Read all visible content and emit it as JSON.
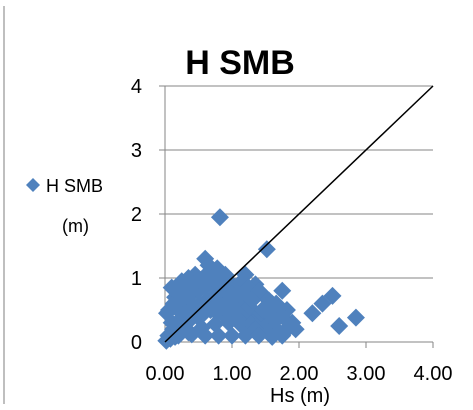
{
  "chart_data": {
    "type": "scatter",
    "title": "H SMB",
    "xlabel": "Hs (m)",
    "ylabel": "",
    "xlim": [
      0,
      4
    ],
    "ylim": [
      0,
      4
    ],
    "x_ticks": [
      "0.00",
      "1.00",
      "2.00",
      "3.00",
      "4.00"
    ],
    "y_ticks": [
      "0",
      "1",
      "2",
      "3",
      "4"
    ],
    "grid": "horizontal",
    "legend": {
      "placement": "left",
      "entries": [
        "H SMB",
        "(m)"
      ]
    },
    "colors": {
      "series": "#4F81BD",
      "reference_line": "#000000",
      "grid": "#868686"
    },
    "reference_line": {
      "x": [
        0,
        4
      ],
      "y": [
        0,
        4
      ]
    },
    "series": [
      {
        "name": "H SMB (m)",
        "x": [
          0.82,
          1.52,
          0.6,
          0.65,
          0.78,
          0.9,
          2.5,
          2.35,
          2.2,
          2.6,
          2.85,
          1.75,
          1.82,
          1.9,
          1.2,
          1.35,
          1.45,
          1.6,
          1.05,
          0.25,
          0.35,
          0.45,
          0.15,
          0.55,
          0.7,
          0.95,
          1.1,
          1.25,
          1.4,
          1.55,
          1.7,
          0.05,
          0.1,
          0.2,
          0.3,
          0.4,
          0.5,
          0.6,
          0.75,
          0.85,
          1.0,
          1.15,
          1.3,
          1.5,
          1.65,
          1.8,
          0.12,
          0.22,
          0.32,
          0.42,
          0.52,
          0.62,
          0.72,
          0.82,
          0.92,
          1.02,
          1.12,
          1.22,
          1.32,
          1.42,
          1.62,
          0.08,
          0.18,
          0.28,
          0.38,
          0.48,
          0.58,
          0.68,
          0.78,
          0.88,
          0.98,
          1.08,
          1.18,
          1.28,
          1.38,
          1.48,
          1.58,
          1.68,
          1.78,
          0.02,
          0.15,
          0.35,
          0.55,
          0.75,
          0.95,
          1.15,
          1.35,
          1.55,
          1.75,
          1.95,
          0.03,
          0.13,
          0.23,
          0.43,
          0.63,
          0.83,
          1.03,
          1.23,
          1.43,
          1.63,
          0.06,
          0.26,
          0.46,
          0.66,
          0.86,
          1.06,
          1.26,
          1.46,
          1.66,
          1.86,
          0.1,
          0.3,
          0.5,
          0.7,
          0.9,
          1.1,
          1.3,
          1.5,
          0.2,
          0.4,
          0.6,
          0.8,
          1.0,
          1.2,
          1.4,
          1.6
        ],
        "y": [
          1.95,
          1.45,
          1.3,
          1.2,
          1.15,
          1.05,
          0.72,
          0.6,
          0.45,
          0.25,
          0.38,
          0.8,
          0.5,
          0.3,
          1.05,
          0.9,
          0.75,
          0.6,
          0.85,
          0.95,
          1.0,
          1.05,
          0.7,
          0.95,
          1.0,
          0.95,
          0.9,
          0.85,
          0.8,
          0.65,
          0.55,
          0.1,
          0.3,
          0.5,
          0.65,
          0.75,
          0.8,
          0.85,
          0.9,
          0.8,
          0.75,
          0.7,
          0.65,
          0.55,
          0.45,
          0.35,
          0.2,
          0.35,
          0.45,
          0.55,
          0.6,
          0.65,
          0.7,
          0.62,
          0.58,
          0.55,
          0.5,
          0.45,
          0.4,
          0.35,
          0.3,
          0.05,
          0.15,
          0.25,
          0.35,
          0.4,
          0.45,
          0.5,
          0.45,
          0.42,
          0.4,
          0.35,
          0.3,
          0.28,
          0.25,
          0.22,
          0.2,
          0.18,
          0.15,
          0.02,
          0.08,
          0.15,
          0.22,
          0.28,
          0.3,
          0.25,
          0.2,
          0.15,
          0.1,
          0.2,
          0.45,
          0.6,
          0.8,
          0.9,
          0.95,
          0.7,
          0.6,
          0.5,
          0.45,
          0.4,
          0.5,
          0.7,
          0.85,
          1.1,
          0.55,
          0.5,
          0.55,
          0.5,
          0.6,
          0.25,
          0.85,
          0.9,
          0.98,
          1.0,
          0.95,
          0.75,
          0.65,
          0.5,
          0.1,
          0.12,
          0.1,
          0.1,
          0.1,
          0.1,
          0.1,
          0.08
        ]
      }
    ]
  }
}
